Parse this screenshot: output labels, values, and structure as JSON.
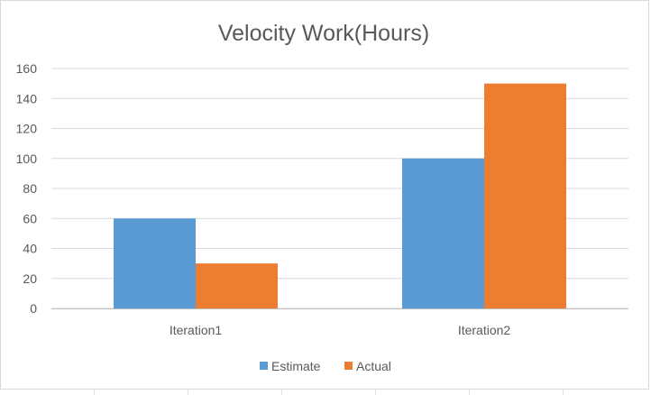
{
  "chart_data": {
    "type": "bar",
    "title": "Velocity Work(Hours)",
    "categories": [
      "Iteration1",
      "Iteration2"
    ],
    "series": [
      {
        "name": "Estimate",
        "values": [
          60,
          100
        ],
        "color": "#5b9bd5"
      },
      {
        "name": "Actual",
        "values": [
          30,
          150
        ],
        "color": "#ed7d31"
      }
    ],
    "ylim": [
      0,
      160
    ],
    "yticks": [
      0,
      20,
      40,
      60,
      80,
      100,
      120,
      140,
      160
    ],
    "xlabel": "",
    "ylabel": "",
    "grid": true,
    "legend": "bottom"
  }
}
